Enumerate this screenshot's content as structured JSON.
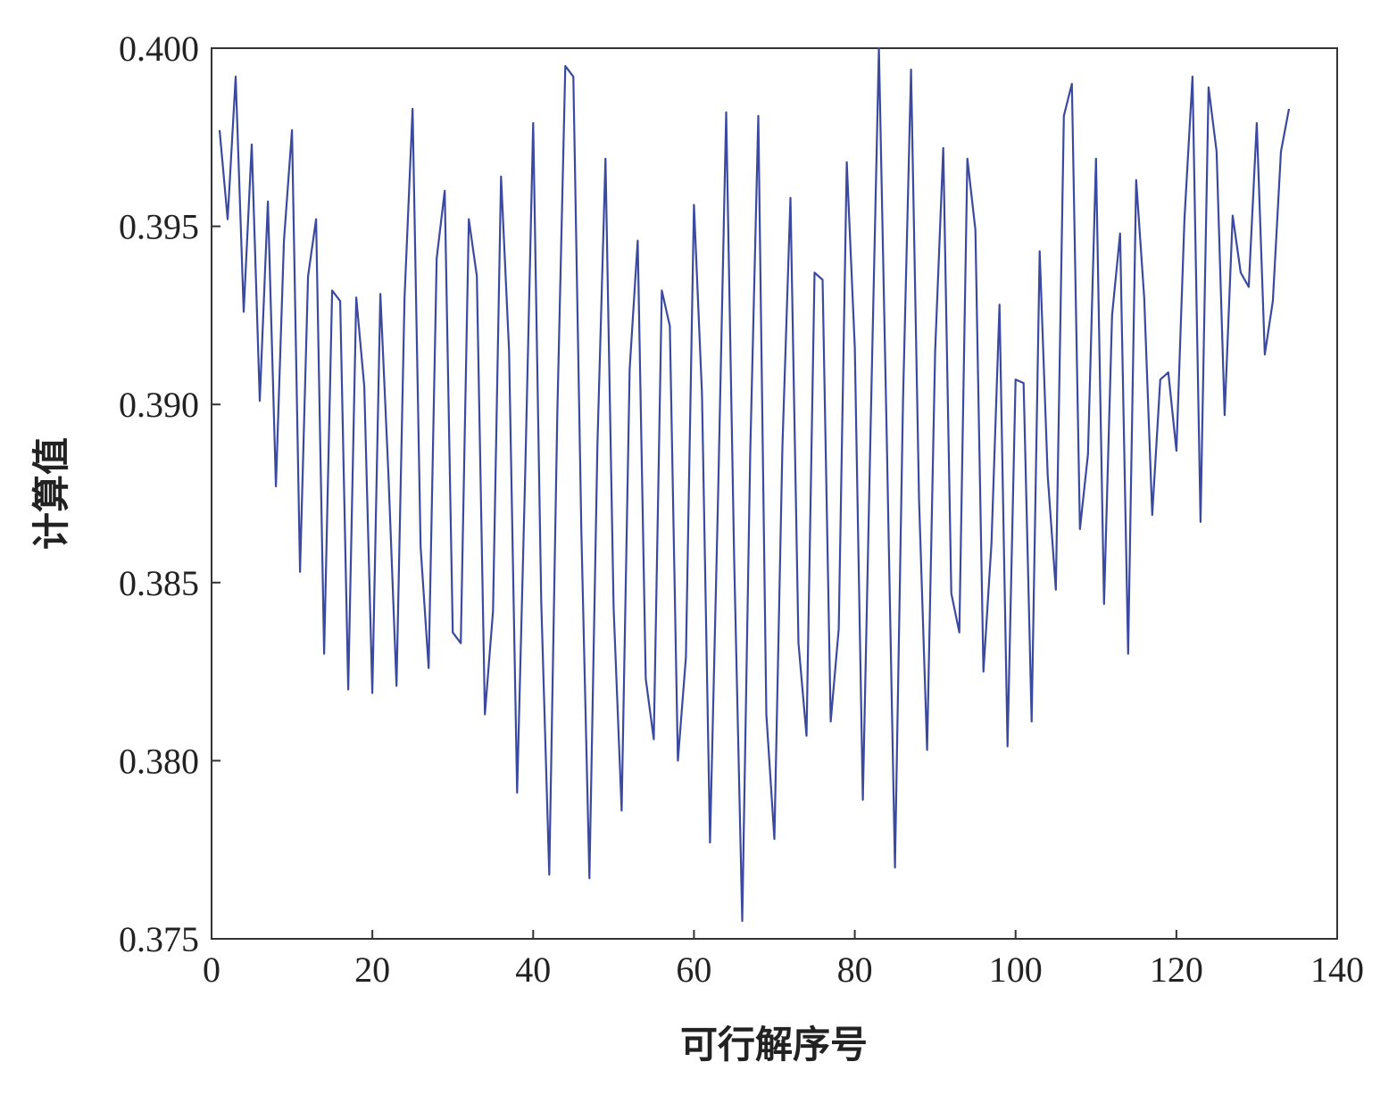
{
  "chart_data": {
    "type": "line",
    "title": "",
    "xlabel": "可行解序号",
    "ylabel": "计算值",
    "xlim": [
      0,
      140
    ],
    "ylim": [
      0.375,
      0.4
    ],
    "xticks": [
      0,
      20,
      40,
      60,
      80,
      100,
      120,
      140
    ],
    "xtick_labels": [
      "0",
      "20",
      "40",
      "60",
      "80",
      "100",
      "120",
      "140"
    ],
    "yticks": [
      0.375,
      0.38,
      0.385,
      0.39,
      0.395,
      0.4
    ],
    "ytick_labels": [
      "0.375",
      "0.380",
      "0.385",
      "0.390",
      "0.395",
      "0.400"
    ],
    "grid": false,
    "legend": "none",
    "line_color": "#3b4a9e",
    "series": [
      {
        "x": [
          1,
          2,
          3,
          4,
          5,
          6,
          7,
          8,
          9,
          10,
          11,
          12,
          13,
          14,
          15,
          16,
          17,
          18,
          19,
          20,
          21,
          22,
          23,
          24,
          25,
          26,
          27,
          28,
          29,
          30,
          31,
          32,
          33,
          34,
          35,
          36,
          37,
          38,
          39,
          40,
          41,
          42,
          43,
          44,
          45,
          46,
          47,
          48,
          49,
          50,
          51,
          52,
          53,
          54,
          55,
          56,
          57,
          58,
          59,
          60,
          61,
          62,
          63,
          64,
          65,
          66,
          67,
          68,
          69,
          70,
          71,
          72,
          73,
          74,
          75,
          76,
          77,
          78,
          79,
          80,
          81,
          82,
          83,
          84,
          85,
          86,
          87,
          88,
          89,
          90,
          91,
          92,
          93,
          94,
          95,
          96,
          97,
          98,
          99,
          100,
          101,
          102,
          103,
          104,
          105,
          106,
          107,
          108,
          109,
          110,
          111,
          112,
          113,
          114,
          115,
          116,
          117,
          118,
          119,
          120,
          121,
          122,
          123,
          124,
          125,
          126,
          127,
          128,
          129,
          130,
          131,
          132,
          133,
          134
        ],
        "values": [
          0.3977,
          0.3952,
          0.3992,
          0.3926,
          0.3973,
          0.3901,
          0.3957,
          0.3877,
          0.3946,
          0.3977,
          0.3853,
          0.3936,
          0.3952,
          0.383,
          0.3932,
          0.3929,
          0.382,
          0.393,
          0.3905,
          0.3819,
          0.3931,
          0.388,
          0.3821,
          0.393,
          0.3983,
          0.386,
          0.3826,
          0.3941,
          0.396,
          0.3836,
          0.3833,
          0.3952,
          0.3936,
          0.3813,
          0.3842,
          0.3964,
          0.3915,
          0.3791,
          0.388,
          0.3979,
          0.3845,
          0.3768,
          0.3897,
          0.3995,
          0.3992,
          0.3864,
          0.3767,
          0.3889,
          0.3969,
          0.3843,
          0.3786,
          0.391,
          0.3946,
          0.3823,
          0.3806,
          0.3932,
          0.3922,
          0.38,
          0.3829,
          0.3956,
          0.3903,
          0.3777,
          0.3875,
          0.3982,
          0.3856,
          0.3755,
          0.3887,
          0.3981,
          0.3813,
          0.3778,
          0.3888,
          0.3958,
          0.3833,
          0.3807,
          0.3937,
          0.3935,
          0.3811,
          0.3837,
          0.3968,
          0.3916,
          0.3789,
          0.3897,
          0.4,
          0.3888,
          0.377,
          0.3901,
          0.3994,
          0.3873,
          0.3803,
          0.3915,
          0.3972,
          0.3847,
          0.3836,
          0.3969,
          0.3949,
          0.3825,
          0.3861,
          0.3928,
          0.3804,
          0.3907,
          0.3906,
          0.3811,
          0.3943,
          0.388,
          0.3848,
          0.3981,
          0.399,
          0.3865,
          0.3886,
          0.3969,
          0.3844,
          0.3925,
          0.3948,
          0.383,
          0.3963,
          0.393,
          0.3869,
          0.3907,
          0.3909,
          0.3887,
          0.3952,
          0.3992,
          0.3867,
          0.3989,
          0.3971,
          0.3897,
          0.3953,
          0.3937,
          0.3933,
          0.3979,
          0.3914,
          0.3929,
          0.3971,
          0.3983
        ]
      }
    ]
  }
}
